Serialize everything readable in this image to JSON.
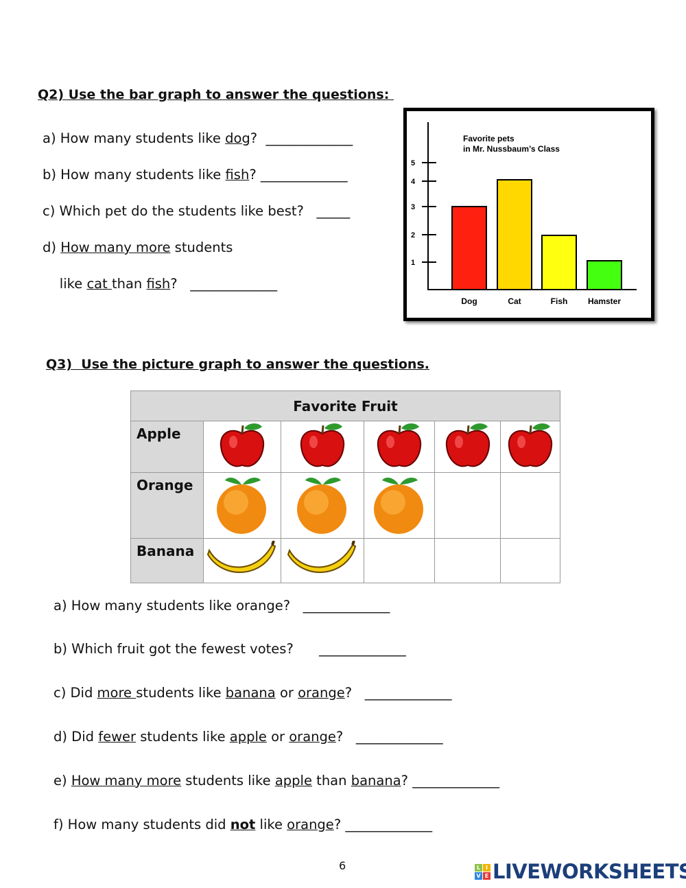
{
  "q2": {
    "heading": "Q2) Use the bar graph to answer the questions: ",
    "questions": [
      [
        {
          "t": "a) How many students like "
        },
        {
          "t": "dog",
          "u": true
        },
        {
          "t": "?  _____________"
        }
      ],
      [
        {
          "t": "b) How many students like "
        },
        {
          "t": "fish",
          "u": true
        },
        {
          "t": "? _____________"
        }
      ],
      [
        {
          "t": "c) Which pet do the students like best?   _____"
        }
      ],
      [
        {
          "t": "d) "
        },
        {
          "t": "How many more",
          "u": true
        },
        {
          "t": " students"
        }
      ],
      [
        {
          "t": "    like "
        },
        {
          "t": "cat ",
          "u": true
        },
        {
          "t": "than "
        },
        {
          "t": "fish",
          "u": true
        },
        {
          "t": "?   _____________"
        }
      ]
    ]
  },
  "chart_data": {
    "type": "bar",
    "title": "Favorite pets in Mr. Nussbaum’s Class",
    "title_lines": [
      "Favorite pets",
      "in Mr. Nussbaum’s Class"
    ],
    "categories": [
      "Dog",
      "Cat",
      "Fish",
      "Hamster"
    ],
    "values": [
      3,
      4,
      2,
      1
    ],
    "colors": [
      "#ff2010",
      "#ffd800",
      "#ffff10",
      "#44ff10"
    ],
    "yticks": [
      "1",
      "2",
      "3",
      "4",
      "5"
    ],
    "ylim": [
      0,
      6
    ],
    "grid": false
  },
  "q3": {
    "heading": "Q3)  Use the picture graph to answer the questions.",
    "table": {
      "title": "Favorite Fruit",
      "rows": [
        {
          "label": "Apple",
          "icon": "apple-icon",
          "count": 5
        },
        {
          "label": "Orange",
          "icon": "orange-icon",
          "count": 3
        },
        {
          "label": "Banana",
          "icon": "banana-icon",
          "count": 2
        }
      ]
    },
    "questions": [
      [
        {
          "t": "a) How many students like orange?   _____________"
        }
      ],
      [
        {
          "t": "b) Which fruit got the fewest votes?      _____________"
        }
      ],
      [
        {
          "t": "c) Did "
        },
        {
          "t": "more ",
          "u": true
        },
        {
          "t": "students like "
        },
        {
          "t": "banana",
          "u": true
        },
        {
          "t": " or "
        },
        {
          "t": "orange",
          "u": true
        },
        {
          "t": "?   _____________"
        }
      ],
      [
        {
          "t": "d) Did "
        },
        {
          "t": "fewer",
          "u": true
        },
        {
          "t": " students like "
        },
        {
          "t": "apple",
          "u": true
        },
        {
          "t": " or "
        },
        {
          "t": "orange",
          "u": true
        },
        {
          "t": "?   _____________"
        }
      ],
      [
        {
          "t": "e) "
        },
        {
          "t": "How many more",
          "u": true
        },
        {
          "t": " students like "
        },
        {
          "t": "apple",
          "u": true
        },
        {
          "t": " than "
        },
        {
          "t": "banana",
          "u": true
        },
        {
          "t": "? _____________"
        }
      ],
      [
        {
          "t": "f) How many students did "
        },
        {
          "t": "not",
          "u": true,
          "b": true
        },
        {
          "t": " like "
        },
        {
          "t": "orange",
          "u": true
        },
        {
          "t": "? _____________"
        }
      ]
    ]
  },
  "footer": {
    "page_number": "6",
    "logo_text": "LIVEWORKSHEETS",
    "logo_tiles": [
      "L",
      "I",
      "V",
      "E"
    ]
  }
}
